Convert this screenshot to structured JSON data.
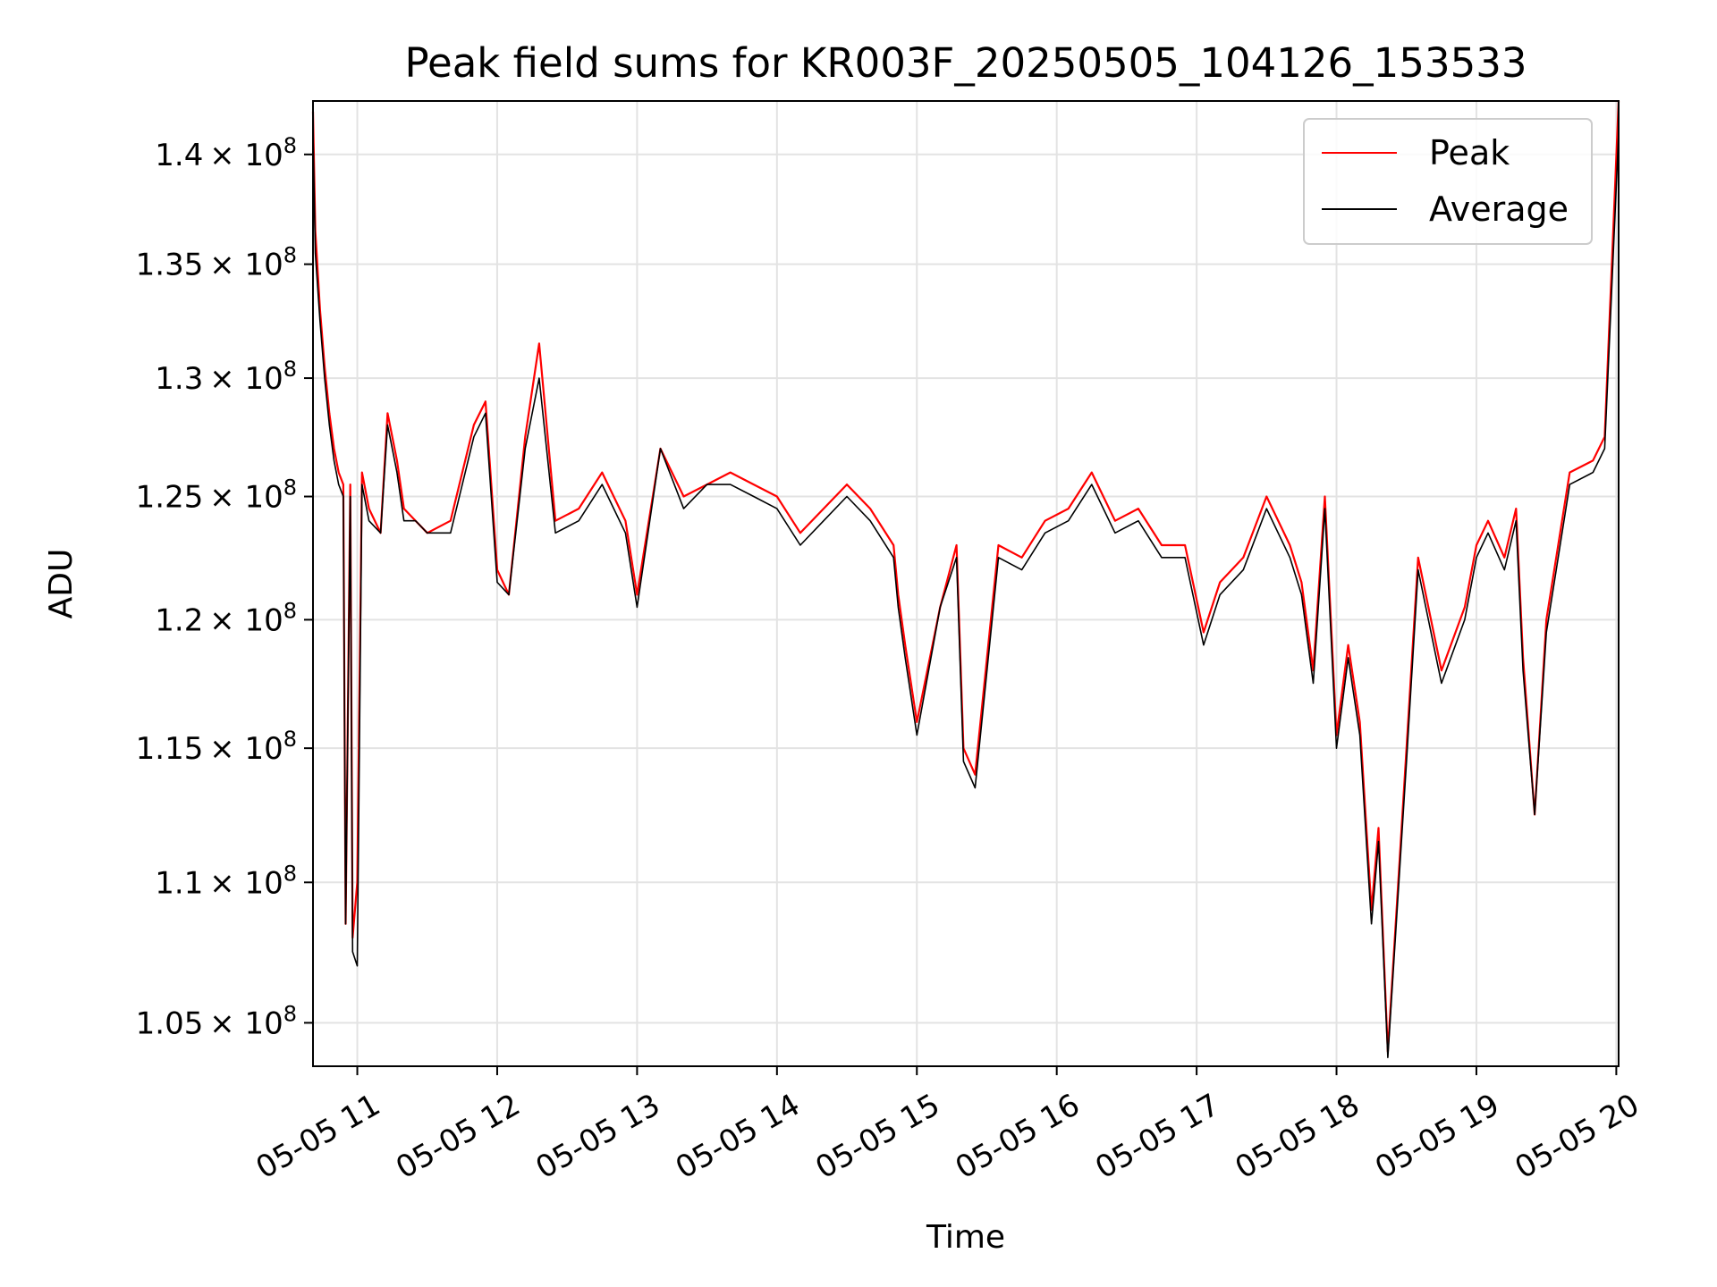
{
  "chart_data": {
    "type": "line",
    "title": "Peak field sums for KR003F_20250505_104126_153533",
    "xlabel": "Time",
    "ylabel": "ADU",
    "y_scale": "log",
    "grid": true,
    "legend_position": "top-right",
    "xlim": [
      "2025-05-05 10:41",
      "2025-05-05 20:01"
    ],
    "ylim": [
      103500000,
      142500000
    ],
    "x_ticks": [
      {
        "value": "2025-05-05 11:00",
        "label": "05-05 11"
      },
      {
        "value": "2025-05-05 12:00",
        "label": "05-05 12"
      },
      {
        "value": "2025-05-05 13:00",
        "label": "05-05 13"
      },
      {
        "value": "2025-05-05 14:00",
        "label": "05-05 14"
      },
      {
        "value": "2025-05-05 15:00",
        "label": "05-05 15"
      },
      {
        "value": "2025-05-05 16:00",
        "label": "05-05 16"
      },
      {
        "value": "2025-05-05 17:00",
        "label": "05-05 17"
      },
      {
        "value": "2025-05-05 18:00",
        "label": "05-05 18"
      },
      {
        "value": "2025-05-05 19:00",
        "label": "05-05 19"
      },
      {
        "value": "2025-05-05 20:00",
        "label": "05-05 20"
      }
    ],
    "y_ticks": [
      {
        "value": 105000000,
        "mantissa": "1.05",
        "exp": "8"
      },
      {
        "value": 110000000,
        "mantissa": "1.1",
        "exp": "8"
      },
      {
        "value": 115000000,
        "mantissa": "1.15",
        "exp": "8"
      },
      {
        "value": 120000000,
        "mantissa": "1.2",
        "exp": "8"
      },
      {
        "value": 125000000,
        "mantissa": "1.25",
        "exp": "8"
      },
      {
        "value": 130000000,
        "mantissa": "1.3",
        "exp": "8"
      },
      {
        "value": 135000000,
        "mantissa": "1.35",
        "exp": "8"
      },
      {
        "value": 140000000,
        "mantissa": "1.4",
        "exp": "8"
      }
    ],
    "tick_times_label": "× 10",
    "series": [
      {
        "name": "Peak",
        "color": "#ff0000",
        "x": [
          "2025-05-05 10:41",
          "2025-05-05 10:42",
          "2025-05-05 10:44",
          "2025-05-05 10:46",
          "2025-05-05 10:48",
          "2025-05-05 10:50",
          "2025-05-05 10:52",
          "2025-05-05 10:54",
          "2025-05-05 10:55",
          "2025-05-05 10:57",
          "2025-05-05 10:58",
          "2025-05-05 11:00",
          "2025-05-05 11:02",
          "2025-05-05 11:05",
          "2025-05-05 11:10",
          "2025-05-05 11:13",
          "2025-05-05 11:17",
          "2025-05-05 11:20",
          "2025-05-05 11:25",
          "2025-05-05 11:30",
          "2025-05-05 11:40",
          "2025-05-05 11:50",
          "2025-05-05 11:55",
          "2025-05-05 12:00",
          "2025-05-05 12:05",
          "2025-05-05 12:12",
          "2025-05-05 12:18",
          "2025-05-05 12:25",
          "2025-05-05 12:35",
          "2025-05-05 12:45",
          "2025-05-05 12:55",
          "2025-05-05 13:00",
          "2025-05-05 13:10",
          "2025-05-05 13:20",
          "2025-05-05 13:30",
          "2025-05-05 13:40",
          "2025-05-05 13:50",
          "2025-05-05 14:00",
          "2025-05-05 14:10",
          "2025-05-05 14:20",
          "2025-05-05 14:30",
          "2025-05-05 14:40",
          "2025-05-05 14:50",
          "2025-05-05 14:52",
          "2025-05-05 14:55",
          "2025-05-05 15:00",
          "2025-05-05 15:10",
          "2025-05-05 15:17",
          "2025-05-05 15:20",
          "2025-05-05 15:25",
          "2025-05-05 15:35",
          "2025-05-05 15:45",
          "2025-05-05 15:55",
          "2025-05-05 16:05",
          "2025-05-05 16:15",
          "2025-05-05 16:25",
          "2025-05-05 16:35",
          "2025-05-05 16:45",
          "2025-05-05 16:55",
          "2025-05-05 17:03",
          "2025-05-05 17:10",
          "2025-05-05 17:20",
          "2025-05-05 17:30",
          "2025-05-05 17:40",
          "2025-05-05 17:45",
          "2025-05-05 17:50",
          "2025-05-05 17:55",
          "2025-05-05 18:00",
          "2025-05-05 18:05",
          "2025-05-05 18:10",
          "2025-05-05 18:15",
          "2025-05-05 18:18",
          "2025-05-05 18:22",
          "2025-05-05 18:30",
          "2025-05-05 18:35",
          "2025-05-05 18:45",
          "2025-05-05 18:55",
          "2025-05-05 19:00",
          "2025-05-05 19:05",
          "2025-05-05 19:12",
          "2025-05-05 19:17",
          "2025-05-05 19:20",
          "2025-05-05 19:25",
          "2025-05-05 19:30",
          "2025-05-05 19:40",
          "2025-05-05 19:50",
          "2025-05-05 19:55",
          "2025-05-05 20:01"
        ],
        "values": [
          142000000,
          136500000,
          133000000,
          130500000,
          128500000,
          127000000,
          126000000,
          125500000,
          108500000,
          125500000,
          108000000,
          110000000,
          126000000,
          124500000,
          123500000,
          128500000,
          126500000,
          124500000,
          124000000,
          123500000,
          124000000,
          128000000,
          129000000,
          122000000,
          121000000,
          127500000,
          131500000,
          124000000,
          124500000,
          126000000,
          124000000,
          121000000,
          127000000,
          125000000,
          125500000,
          126000000,
          125500000,
          125000000,
          123500000,
          124500000,
          125500000,
          124500000,
          123000000,
          121000000,
          119000000,
          116000000,
          120500000,
          123000000,
          115000000,
          114000000,
          123000000,
          122500000,
          124000000,
          124500000,
          126000000,
          124000000,
          124500000,
          123000000,
          123000000,
          119500000,
          121500000,
          122500000,
          125000000,
          123000000,
          121500000,
          118000000,
          125000000,
          115500000,
          119000000,
          116000000,
          109000000,
          112000000,
          104000000,
          115000000,
          122500000,
          118000000,
          120500000,
          123000000,
          124000000,
          122500000,
          124500000,
          118500000,
          112500000,
          120000000,
          126000000,
          126500000,
          127500000,
          142500000
        ]
      },
      {
        "name": "Average",
        "color": "#000000",
        "x": [
          "2025-05-05 10:41",
          "2025-05-05 10:42",
          "2025-05-05 10:44",
          "2025-05-05 10:46",
          "2025-05-05 10:48",
          "2025-05-05 10:50",
          "2025-05-05 10:52",
          "2025-05-05 10:54",
          "2025-05-05 10:55",
          "2025-05-05 10:57",
          "2025-05-05 10:58",
          "2025-05-05 11:00",
          "2025-05-05 11:02",
          "2025-05-05 11:05",
          "2025-05-05 11:10",
          "2025-05-05 11:13",
          "2025-05-05 11:17",
          "2025-05-05 11:20",
          "2025-05-05 11:25",
          "2025-05-05 11:30",
          "2025-05-05 11:40",
          "2025-05-05 11:50",
          "2025-05-05 11:55",
          "2025-05-05 12:00",
          "2025-05-05 12:05",
          "2025-05-05 12:12",
          "2025-05-05 12:18",
          "2025-05-05 12:25",
          "2025-05-05 12:35",
          "2025-05-05 12:45",
          "2025-05-05 12:55",
          "2025-05-05 13:00",
          "2025-05-05 13:10",
          "2025-05-05 13:20",
          "2025-05-05 13:30",
          "2025-05-05 13:40",
          "2025-05-05 13:50",
          "2025-05-05 14:00",
          "2025-05-05 14:10",
          "2025-05-05 14:20",
          "2025-05-05 14:30",
          "2025-05-05 14:40",
          "2025-05-05 14:50",
          "2025-05-05 14:52",
          "2025-05-05 14:55",
          "2025-05-05 15:00",
          "2025-05-05 15:10",
          "2025-05-05 15:17",
          "2025-05-05 15:20",
          "2025-05-05 15:25",
          "2025-05-05 15:35",
          "2025-05-05 15:45",
          "2025-05-05 15:55",
          "2025-05-05 16:05",
          "2025-05-05 16:15",
          "2025-05-05 16:25",
          "2025-05-05 16:35",
          "2025-05-05 16:45",
          "2025-05-05 16:55",
          "2025-05-05 17:03",
          "2025-05-05 17:10",
          "2025-05-05 17:20",
          "2025-05-05 17:30",
          "2025-05-05 17:40",
          "2025-05-05 17:45",
          "2025-05-05 17:50",
          "2025-05-05 17:55",
          "2025-05-05 18:00",
          "2025-05-05 18:05",
          "2025-05-05 18:10",
          "2025-05-05 18:15",
          "2025-05-05 18:18",
          "2025-05-05 18:22",
          "2025-05-05 18:30",
          "2025-05-05 18:35",
          "2025-05-05 18:45",
          "2025-05-05 18:55",
          "2025-05-05 19:00",
          "2025-05-05 19:05",
          "2025-05-05 19:12",
          "2025-05-05 19:17",
          "2025-05-05 19:20",
          "2025-05-05 19:25",
          "2025-05-05 19:30",
          "2025-05-05 19:40",
          "2025-05-05 19:50",
          "2025-05-05 19:55",
          "2025-05-05 20:01"
        ],
        "values": [
          141000000,
          135500000,
          132500000,
          130000000,
          128000000,
          126500000,
          125500000,
          125000000,
          108500000,
          125000000,
          107500000,
          107000000,
          125500000,
          124000000,
          123500000,
          128000000,
          126000000,
          124000000,
          124000000,
          123500000,
          123500000,
          127500000,
          128500000,
          121500000,
          121000000,
          127000000,
          130000000,
          123500000,
          124000000,
          125500000,
          123500000,
          120500000,
          127000000,
          124500000,
          125500000,
          125500000,
          125000000,
          124500000,
          123000000,
          124000000,
          125000000,
          124000000,
          122500000,
          120500000,
          118500000,
          115500000,
          120500000,
          122500000,
          114500000,
          113500000,
          122500000,
          122000000,
          123500000,
          124000000,
          125500000,
          123500000,
          124000000,
          122500000,
          122500000,
          119000000,
          121000000,
          122000000,
          124500000,
          122500000,
          121000000,
          117500000,
          124500000,
          115000000,
          118500000,
          115500000,
          108500000,
          111500000,
          103800000,
          114500000,
          122000000,
          117500000,
          120000000,
          122500000,
          123500000,
          122000000,
          124000000,
          118000000,
          112500000,
          119500000,
          125500000,
          126000000,
          127000000,
          141000000
        ]
      }
    ]
  }
}
